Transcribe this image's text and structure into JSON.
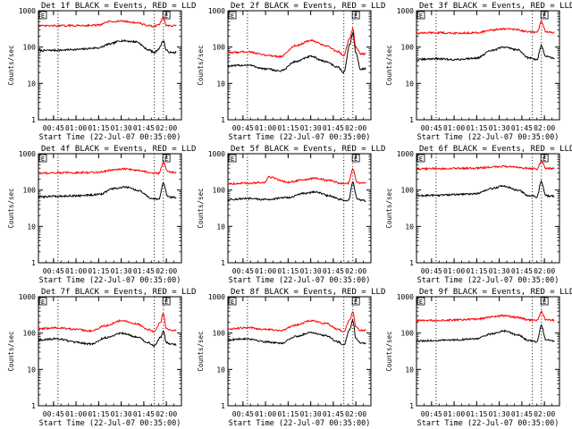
{
  "figure": {
    "legend_note": "BLACK = Events, RED = LLD"
  },
  "chart_data": [
    {
      "type": "line",
      "title": "Det 1f BLACK = Events, RED = LLD",
      "xlabel": "Start Time (22-Jul-07 00:35:00)",
      "ylabel": "Counts/sec",
      "y_scale": "log",
      "ylim": [
        1,
        1000
      ],
      "yticks": [
        "1",
        "10",
        "100",
        "1000"
      ],
      "xticks": [
        "00:45",
        "01:00",
        "01:15",
        "01:30",
        "01:45",
        "02:00"
      ],
      "xlim": [
        "00:35",
        "02:10"
      ],
      "vlines": [
        "00:48",
        "01:52",
        "01:58"
      ],
      "marker": {
        "label": "E",
        "time": "02:00"
      },
      "series": [
        {
          "name": "Events",
          "color": "#000000",
          "x": [
            "00:35",
            "00:48",
            "01:00",
            "01:15",
            "01:22",
            "01:30",
            "01:40",
            "01:48",
            "01:52",
            "01:55",
            "01:58",
            "02:00",
            "02:03",
            "02:07"
          ],
          "y": [
            80,
            82,
            86,
            95,
            120,
            150,
            140,
            85,
            70,
            90,
            150,
            80,
            70,
            72
          ]
        },
        {
          "name": "LLD",
          "color": "#ff0000",
          "x": [
            "00:35",
            "00:48",
            "01:00",
            "01:15",
            "01:22",
            "01:30",
            "01:40",
            "01:48",
            "01:52",
            "01:55",
            "01:58",
            "02:00",
            "02:03",
            "02:07"
          ],
          "y": [
            380,
            385,
            390,
            400,
            500,
            520,
            470,
            390,
            370,
            420,
            650,
            390,
            380,
            385
          ]
        }
      ]
    },
    {
      "type": "line",
      "title": "Det 2f BLACK = Events, RED = LLD",
      "xlabel": "Start Time (22-Jul-07 00:35:00)",
      "ylabel": "Counts/sec",
      "y_scale": "log",
      "ylim": [
        1,
        1000
      ],
      "yticks": [
        "1",
        "10",
        "100",
        "1000"
      ],
      "xticks": [
        "00:45",
        "01:00",
        "01:15",
        "01:30",
        "01:45",
        "02:00"
      ],
      "xlim": [
        "00:35",
        "02:10"
      ],
      "vlines": [
        "00:48",
        "01:52",
        "01:58"
      ],
      "marker": {
        "label": "E",
        "time": "02:00"
      },
      "series": [
        {
          "name": "Events",
          "color": "#000000",
          "x": [
            "00:35",
            "00:48",
            "01:00",
            "01:10",
            "01:20",
            "01:30",
            "01:40",
            "01:48",
            "01:52",
            "01:56",
            "01:58",
            "02:00",
            "02:03",
            "02:07"
          ],
          "y": [
            30,
            32,
            25,
            22,
            40,
            55,
            40,
            28,
            20,
            120,
            250,
            70,
            25,
            25
          ]
        },
        {
          "name": "LLD",
          "color": "#ff0000",
          "x": [
            "00:35",
            "00:48",
            "01:00",
            "01:10",
            "01:20",
            "01:30",
            "01:40",
            "01:48",
            "01:52",
            "01:56",
            "01:58",
            "02:00",
            "02:03",
            "02:07"
          ],
          "y": [
            70,
            75,
            60,
            55,
            110,
            150,
            110,
            75,
            60,
            180,
            320,
            100,
            65,
            65
          ]
        }
      ]
    },
    {
      "type": "line",
      "title": "Det 3f BLACK = Events, RED = LLD",
      "xlabel": "Start Time (22-Jul-07 00:35:00)",
      "ylabel": "Counts/sec",
      "y_scale": "log",
      "ylim": [
        1,
        1000
      ],
      "yticks": [
        "1",
        "10",
        "100",
        "1000"
      ],
      "xticks": [
        "00:45",
        "01:00",
        "01:15",
        "01:30",
        "01:45",
        "02:00"
      ],
      "xlim": [
        "00:35",
        "02:10"
      ],
      "vlines": [
        "00:48",
        "01:52",
        "01:58"
      ],
      "marker": {
        "label": "E",
        "time": "02:00"
      },
      "series": [
        {
          "name": "Events",
          "color": "#000000",
          "x": [
            "00:35",
            "00:48",
            "01:00",
            "01:15",
            "01:25",
            "01:33",
            "01:42",
            "01:50",
            "01:55",
            "01:58",
            "02:01",
            "02:07"
          ],
          "y": [
            45,
            48,
            45,
            50,
            80,
            100,
            85,
            50,
            45,
            110,
            55,
            50
          ]
        },
        {
          "name": "LLD",
          "color": "#ff0000",
          "x": [
            "00:35",
            "00:48",
            "01:00",
            "01:15",
            "01:25",
            "01:33",
            "01:42",
            "01:50",
            "01:55",
            "01:58",
            "02:01",
            "02:07"
          ],
          "y": [
            240,
            250,
            240,
            250,
            290,
            320,
            300,
            260,
            250,
            500,
            260,
            250
          ]
        }
      ]
    },
    {
      "type": "line",
      "title": "Det 4f BLACK = Events, RED = LLD",
      "xlabel": "Start Time (22-Jul-07 00:35:00)",
      "ylabel": "Counts/sec",
      "y_scale": "log",
      "ylim": [
        1,
        1000
      ],
      "yticks": [
        "1",
        "10",
        "100",
        "1000"
      ],
      "xticks": [
        "00:45",
        "01:00",
        "01:15",
        "01:30",
        "01:45",
        "02:00"
      ],
      "xlim": [
        "00:35",
        "02:10"
      ],
      "vlines": [
        "00:48",
        "01:52",
        "01:58"
      ],
      "marker": {
        "label": "E",
        "time": "02:00"
      },
      "series": [
        {
          "name": "Events",
          "color": "#000000",
          "x": [
            "00:35",
            "00:48",
            "01:00",
            "01:15",
            "01:25",
            "01:33",
            "01:42",
            "01:50",
            "01:55",
            "01:58",
            "02:01",
            "02:07"
          ],
          "y": [
            65,
            68,
            70,
            75,
            110,
            120,
            95,
            60,
            55,
            150,
            65,
            62
          ]
        },
        {
          "name": "LLD",
          "color": "#ff0000",
          "x": [
            "00:35",
            "00:48",
            "01:00",
            "01:15",
            "01:25",
            "01:33",
            "01:42",
            "01:50",
            "01:55",
            "01:58",
            "02:01",
            "02:07"
          ],
          "y": [
            290,
            300,
            300,
            310,
            360,
            380,
            350,
            300,
            290,
            550,
            320,
            300
          ]
        }
      ]
    },
    {
      "type": "line",
      "title": "Det 5f BLACK = Events, RED = LLD",
      "xlabel": "Start Time (22-Jul-07 00:35:00)",
      "ylabel": "Counts/sec",
      "y_scale": "log",
      "ylim": [
        1,
        1000
      ],
      "yticks": [
        "1",
        "10",
        "100",
        "1000"
      ],
      "xticks": [
        "00:45",
        "01:00",
        "01:15",
        "01:30",
        "01:45",
        "02:00"
      ],
      "xlim": [
        "00:35",
        "02:10"
      ],
      "vlines": [
        "00:48",
        "01:52",
        "01:58"
      ],
      "marker": {
        "label": "E",
        "time": "02:00"
      },
      "series": [
        {
          "name": "Events",
          "color": "#000000",
          "x": [
            "00:35",
            "00:48",
            "01:00",
            "01:15",
            "01:25",
            "01:33",
            "01:42",
            "01:50",
            "01:55",
            "01:58",
            "02:01",
            "02:07"
          ],
          "y": [
            55,
            58,
            55,
            62,
            80,
            90,
            70,
            55,
            50,
            160,
            55,
            50
          ]
        },
        {
          "name": "LLD",
          "color": "#ff0000",
          "x": [
            "00:35",
            "00:48",
            "01:00",
            "01:02",
            "01:15",
            "01:25",
            "01:33",
            "01:42",
            "01:50",
            "01:55",
            "01:58",
            "02:01",
            "02:07"
          ],
          "y": [
            150,
            155,
            160,
            230,
            165,
            190,
            210,
            185,
            155,
            150,
            380,
            160,
            155
          ]
        }
      ]
    },
    {
      "type": "line",
      "title": "Det 6f BLACK = Events, RED = LLD",
      "xlabel": "Start Time (22-Jul-07 00:35:00)",
      "ylabel": "Counts/sec",
      "y_scale": "log",
      "ylim": [
        1,
        1000
      ],
      "yticks": [
        "1",
        "10",
        "100",
        "1000"
      ],
      "xticks": [
        "00:45",
        "01:00",
        "01:15",
        "01:30",
        "01:45",
        "02:00"
      ],
      "xlim": [
        "00:35",
        "02:10"
      ],
      "vlines": [
        "00:48",
        "01:52",
        "01:58"
      ],
      "marker": {
        "label": "E",
        "time": "02:00"
      },
      "series": [
        {
          "name": "Events",
          "color": "#000000",
          "x": [
            "00:35",
            "00:48",
            "01:00",
            "01:15",
            "01:25",
            "01:33",
            "01:42",
            "01:50",
            "01:55",
            "01:58",
            "02:01",
            "02:07"
          ],
          "y": [
            70,
            72,
            75,
            80,
            110,
            130,
            100,
            70,
            65,
            170,
            70,
            68
          ]
        },
        {
          "name": "LLD",
          "color": "#ff0000",
          "x": [
            "00:35",
            "00:48",
            "01:00",
            "01:15",
            "01:25",
            "01:33",
            "01:42",
            "01:50",
            "01:55",
            "01:58",
            "02:01",
            "02:07"
          ],
          "y": [
            380,
            390,
            390,
            400,
            430,
            450,
            420,
            390,
            380,
            620,
            400,
            390
          ]
        }
      ]
    },
    {
      "type": "line",
      "title": "Det 7f BLACK = Events, RED = LLD",
      "xlabel": "Start Time (22-Jul-07 00:35:00)",
      "ylabel": "Counts/sec",
      "y_scale": "log",
      "ylim": [
        1,
        1000
      ],
      "yticks": [
        "1",
        "10",
        "100",
        "1000"
      ],
      "xticks": [
        "00:45",
        "01:00",
        "01:15",
        "01:30",
        "01:45",
        "02:00"
      ],
      "xlim": [
        "00:35",
        "02:10"
      ],
      "vlines": [
        "00:48",
        "01:52",
        "01:58"
      ],
      "marker": {
        "label": "E",
        "time": "02:00"
      },
      "series": [
        {
          "name": "Events",
          "color": "#000000",
          "x": [
            "00:35",
            "00:48",
            "01:00",
            "01:10",
            "01:20",
            "01:30",
            "01:40",
            "01:48",
            "01:52",
            "01:56",
            "01:58",
            "02:00",
            "02:03",
            "02:07"
          ],
          "y": [
            65,
            70,
            55,
            50,
            75,
            100,
            80,
            55,
            45,
            75,
            110,
            55,
            50,
            48
          ]
        },
        {
          "name": "LLD",
          "color": "#ff0000",
          "x": [
            "00:35",
            "00:48",
            "01:00",
            "01:10",
            "01:20",
            "01:30",
            "01:40",
            "01:48",
            "01:52",
            "01:56",
            "01:58",
            "02:00",
            "02:03",
            "02:07"
          ],
          "y": [
            130,
            140,
            125,
            115,
            160,
            220,
            180,
            125,
            110,
            200,
            340,
            130,
            120,
            115
          ]
        }
      ]
    },
    {
      "type": "line",
      "title": "Det 8f BLACK = Events, RED = LLD",
      "xlabel": "Start Time (22-Jul-07 00:35:00)",
      "ylabel": "Counts/sec",
      "y_scale": "log",
      "ylim": [
        1,
        1000
      ],
      "yticks": [
        "1",
        "10",
        "100",
        "1000"
      ],
      "xticks": [
        "00:45",
        "01:00",
        "01:15",
        "01:30",
        "01:45",
        "02:00"
      ],
      "xlim": [
        "00:35",
        "02:10"
      ],
      "vlines": [
        "00:48",
        "01:52",
        "01:58"
      ],
      "marker": {
        "label": "E",
        "time": "02:00"
      },
      "series": [
        {
          "name": "Events",
          "color": "#000000",
          "x": [
            "00:35",
            "00:48",
            "01:00",
            "01:10",
            "01:20",
            "01:30",
            "01:40",
            "01:48",
            "01:52",
            "01:56",
            "01:58",
            "02:00",
            "02:03",
            "02:07"
          ],
          "y": [
            65,
            70,
            58,
            52,
            80,
            105,
            85,
            58,
            48,
            130,
            220,
            70,
            55,
            52
          ]
        },
        {
          "name": "LLD",
          "color": "#ff0000",
          "x": [
            "00:35",
            "00:48",
            "01:00",
            "01:10",
            "01:20",
            "01:30",
            "01:40",
            "01:48",
            "01:52",
            "01:56",
            "01:58",
            "02:00",
            "02:03",
            "02:07"
          ],
          "y": [
            130,
            140,
            128,
            118,
            165,
            220,
            185,
            128,
            112,
            230,
            380,
            150,
            120,
            118
          ]
        }
      ]
    },
    {
      "type": "line",
      "title": "Det 9f BLACK = Events, RED = LLD",
      "xlabel": "Start Time (22-Jul-07 00:35:00)",
      "ylabel": "Counts/sec",
      "y_scale": "log",
      "ylim": [
        1,
        1000
      ],
      "yticks": [
        "1",
        "10",
        "100",
        "1000"
      ],
      "xticks": [
        "00:45",
        "01:00",
        "01:15",
        "01:30",
        "01:45",
        "02:00"
      ],
      "xlim": [
        "00:35",
        "02:10"
      ],
      "vlines": [
        "00:48",
        "01:52",
        "01:58"
      ],
      "marker": {
        "label": "E",
        "time": "02:00"
      },
      "series": [
        {
          "name": "Events",
          "color": "#000000",
          "x": [
            "00:35",
            "00:48",
            "01:00",
            "01:15",
            "01:25",
            "01:33",
            "01:42",
            "01:50",
            "01:55",
            "01:58",
            "02:01",
            "02:07"
          ],
          "y": [
            60,
            62,
            65,
            70,
            95,
            115,
            90,
            62,
            58,
            160,
            65,
            60
          ]
        },
        {
          "name": "LLD",
          "color": "#ff0000",
          "x": [
            "00:35",
            "00:48",
            "01:00",
            "01:15",
            "01:25",
            "01:33",
            "01:42",
            "01:50",
            "01:55",
            "01:58",
            "02:01",
            "02:07"
          ],
          "y": [
            220,
            225,
            230,
            240,
            280,
            300,
            270,
            230,
            220,
            380,
            235,
            225
          ]
        }
      ]
    }
  ]
}
